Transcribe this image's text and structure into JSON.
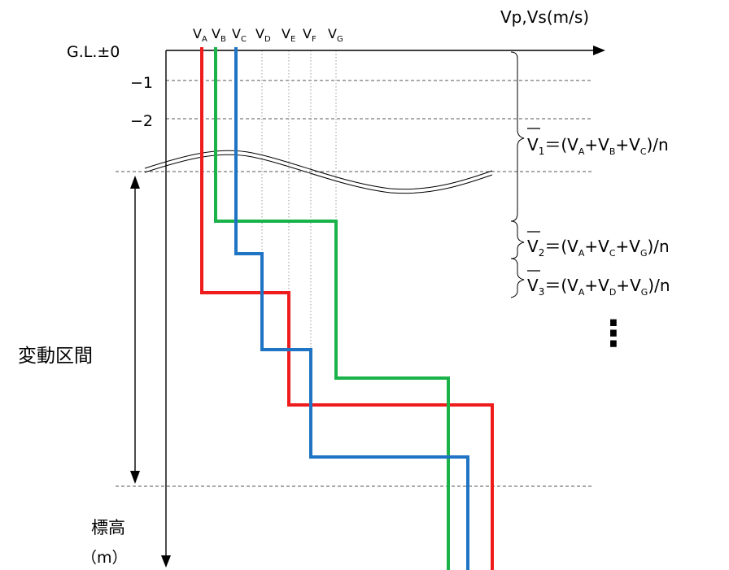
{
  "axes": {
    "x_label": "Vp,Vs(m/s)",
    "y_label_top": "標高",
    "y_label_bottom": "（m）",
    "zero_label": "G.L.±0",
    "tick_labels": [
      "−1",
      "−2"
    ]
  },
  "velocity_labels": [
    {
      "base": "V",
      "sub": "A"
    },
    {
      "base": "V",
      "sub": "B"
    },
    {
      "base": "V",
      "sub": "C"
    },
    {
      "base": "V",
      "sub": "D"
    },
    {
      "base": "V",
      "sub": "E"
    },
    {
      "base": "V",
      "sub": "F"
    },
    {
      "base": "V",
      "sub": "G"
    }
  ],
  "variable_section_label": "変動区間",
  "formulas": [
    {
      "name": "V",
      "index": "1",
      "eq": "＝(",
      "terms": [
        {
          "v": "V",
          "s": "A"
        },
        {
          "v": "V",
          "s": "B"
        },
        {
          "v": "V",
          "s": "C"
        }
      ],
      "tail": ")/n"
    },
    {
      "name": "V",
      "index": "2",
      "eq": "＝(",
      "terms": [
        {
          "v": "V",
          "s": "A"
        },
        {
          "v": "V",
          "s": "C"
        },
        {
          "v": "V",
          "s": "G"
        }
      ],
      "tail": ")/n"
    },
    {
      "name": "V",
      "index": "3",
      "eq": "＝(",
      "terms": [
        {
          "v": "V",
          "s": "A"
        },
        {
          "v": "V",
          "s": "D"
        },
        {
          "v": "V",
          "s": "G"
        }
      ],
      "tail": ")/n"
    }
  ],
  "continuation": "⋮",
  "colors": {
    "red": "#ee1c1c",
    "green": "#1ab34a",
    "blue": "#1f74c4",
    "axis": "#000000",
    "dashed": "#555555",
    "dotted": "#9a9a9a"
  },
  "profiles": [
    {
      "name": "red",
      "color_key": "red"
    },
    {
      "name": "green",
      "color_key": "green"
    },
    {
      "name": "blue",
      "color_key": "blue"
    }
  ]
}
